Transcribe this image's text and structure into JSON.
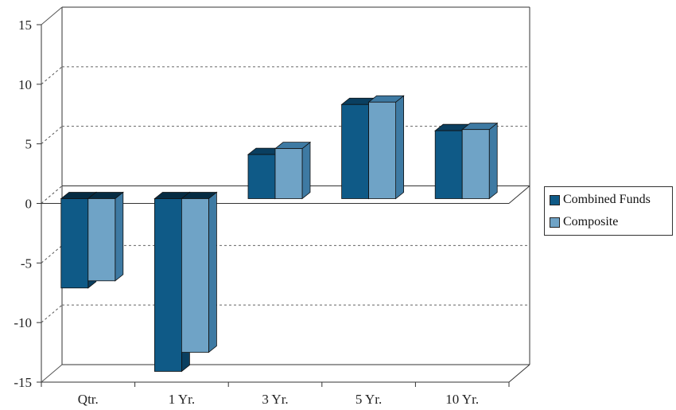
{
  "chart_data": {
    "type": "bar",
    "categories": [
      "Qtr.",
      "1 Yr.",
      "3 Yr.",
      "5 Yr.",
      "10 Yr."
    ],
    "series": [
      {
        "name": "Combined Funds",
        "values": [
          -7.5,
          -14.5,
          3.7,
          7.9,
          5.7
        ],
        "color": "#0f5a87"
      },
      {
        "name": "Composite",
        "values": [
          -6.9,
          -12.9,
          4.2,
          8.1,
          5.8
        ],
        "color": "#6fa3c6"
      }
    ],
    "yticks": [
      15,
      10,
      5,
      0,
      -5,
      -10,
      -15
    ],
    "ylim": [
      -15,
      15
    ],
    "grid": "dashed horizontal",
    "legend_position": "right",
    "title": "",
    "xlabel": "",
    "ylabel": ""
  }
}
